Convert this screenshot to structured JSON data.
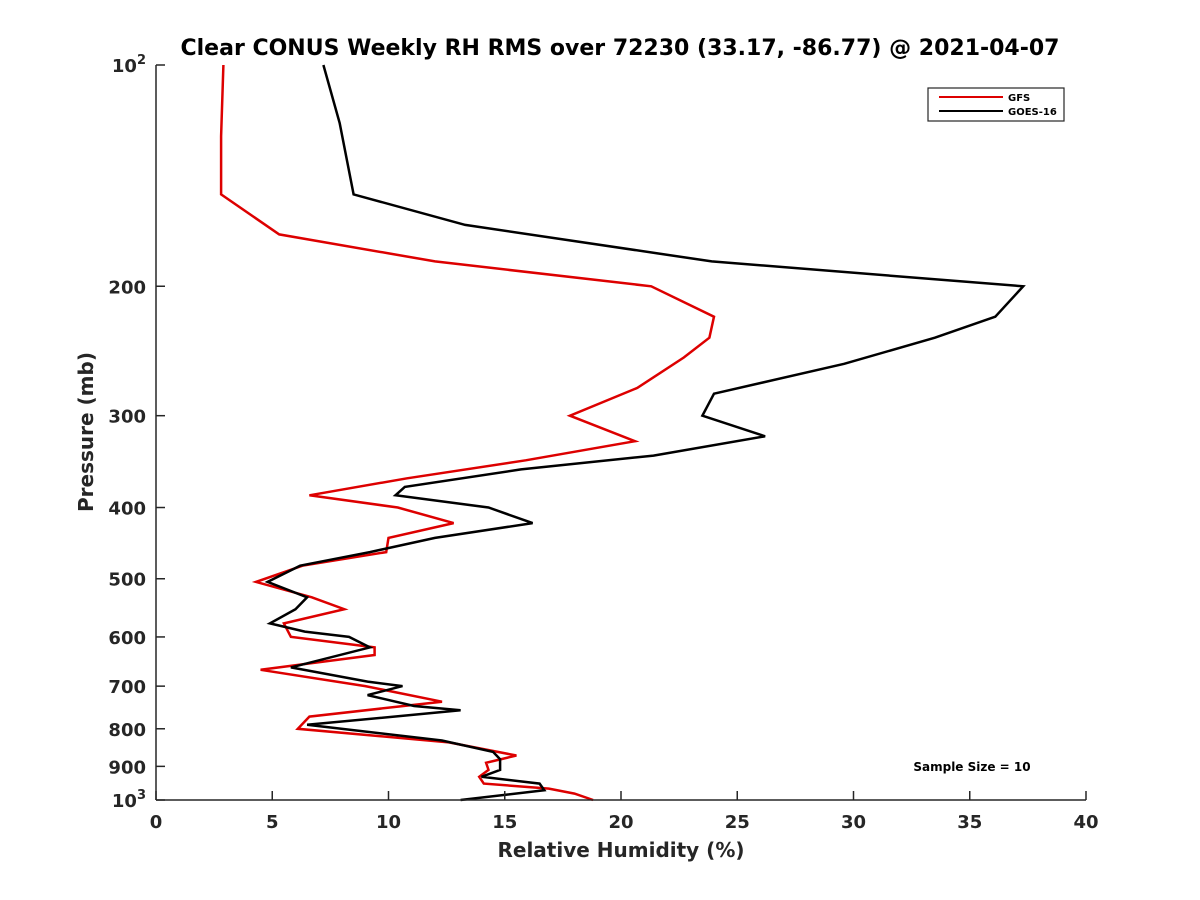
{
  "chart_data": {
    "type": "line",
    "title": "Clear CONUS Weekly RH RMS over 72230 (33.17, -86.77) @ 2021-04-07",
    "xlabel": "Relative Humidity (%)",
    "ylabel": "Pressure (mb)",
    "xlim": [
      0,
      40
    ],
    "ylim": [
      100,
      1000
    ],
    "yscale": "log",
    "yreversed": true,
    "xticks": [
      0,
      5,
      10,
      15,
      20,
      25,
      30,
      35,
      40
    ],
    "yticks": [
      {
        "value": 100,
        "label": "10",
        "sup": "2"
      },
      {
        "value": 200,
        "label": "200"
      },
      {
        "value": 300,
        "label": "300"
      },
      {
        "value": 400,
        "label": "400"
      },
      {
        "value": 500,
        "label": "500"
      },
      {
        "value": 600,
        "label": "600"
      },
      {
        "value": 700,
        "label": "700"
      },
      {
        "value": 800,
        "label": "800"
      },
      {
        "value": 900,
        "label": "900"
      },
      {
        "value": 1000,
        "label": "10",
        "sup": "3"
      }
    ],
    "grid": false,
    "legend_position": "top-right",
    "annotation": "Sample Size = 10",
    "series": [
      {
        "name": "GFS",
        "color": "#dd0000",
        "points": [
          [
            2.9,
            100
          ],
          [
            2.8,
            125
          ],
          [
            2.8,
            150
          ],
          [
            5.3,
            170
          ],
          [
            12.0,
            185
          ],
          [
            21.3,
            200
          ],
          [
            24.0,
            220
          ],
          [
            23.8,
            235
          ],
          [
            22.7,
            250
          ],
          [
            20.7,
            275
          ],
          [
            17.8,
            300
          ],
          [
            20.6,
            325
          ],
          [
            15.9,
            345
          ],
          [
            10.8,
            365
          ],
          [
            6.6,
            385
          ],
          [
            10.4,
            400
          ],
          [
            12.8,
            420
          ],
          [
            10.0,
            440
          ],
          [
            9.9,
            460
          ],
          [
            6.3,
            480
          ],
          [
            4.3,
            505
          ],
          [
            6.7,
            530
          ],
          [
            8.1,
            550
          ],
          [
            5.5,
            575
          ],
          [
            5.8,
            600
          ],
          [
            9.4,
            620
          ],
          [
            9.4,
            635
          ],
          [
            4.5,
            665
          ],
          [
            9.0,
            700
          ],
          [
            12.3,
            735
          ],
          [
            6.6,
            770
          ],
          [
            6.1,
            800
          ],
          [
            12.6,
            835
          ],
          [
            15.5,
            870
          ],
          [
            14.2,
            890
          ],
          [
            14.3,
            910
          ],
          [
            13.9,
            930
          ],
          [
            14.1,
            950
          ],
          [
            16.9,
            965
          ],
          [
            18.0,
            980
          ],
          [
            18.8,
            1000
          ]
        ]
      },
      {
        "name": "GOES-16",
        "color": "#000000",
        "points": [
          [
            7.2,
            100
          ],
          [
            7.9,
            120
          ],
          [
            8.5,
            150
          ],
          [
            13.3,
            165
          ],
          [
            23.9,
            185
          ],
          [
            37.3,
            200
          ],
          [
            36.1,
            220
          ],
          [
            33.5,
            235
          ],
          [
            29.6,
            255
          ],
          [
            24.0,
            280
          ],
          [
            23.5,
            300
          ],
          [
            26.2,
            320
          ],
          [
            21.4,
            340
          ],
          [
            15.7,
            355
          ],
          [
            10.7,
            375
          ],
          [
            10.3,
            385
          ],
          [
            14.3,
            400
          ],
          [
            16.2,
            420
          ],
          [
            12.0,
            440
          ],
          [
            9.2,
            460
          ],
          [
            6.2,
            480
          ],
          [
            4.8,
            505
          ],
          [
            6.5,
            530
          ],
          [
            6.0,
            550
          ],
          [
            4.9,
            575
          ],
          [
            6.4,
            590
          ],
          [
            8.3,
            600
          ],
          [
            9.2,
            620
          ],
          [
            5.8,
            660
          ],
          [
            9.1,
            690
          ],
          [
            10.6,
            700
          ],
          [
            9.1,
            720
          ],
          [
            11.1,
            745
          ],
          [
            13.1,
            755
          ],
          [
            6.5,
            790
          ],
          [
            12.3,
            830
          ],
          [
            14.5,
            860
          ],
          [
            14.8,
            880
          ],
          [
            14.8,
            910
          ],
          [
            14.0,
            930
          ],
          [
            16.5,
            950
          ],
          [
            16.7,
            970
          ],
          [
            13.1,
            1000
          ]
        ]
      }
    ]
  }
}
